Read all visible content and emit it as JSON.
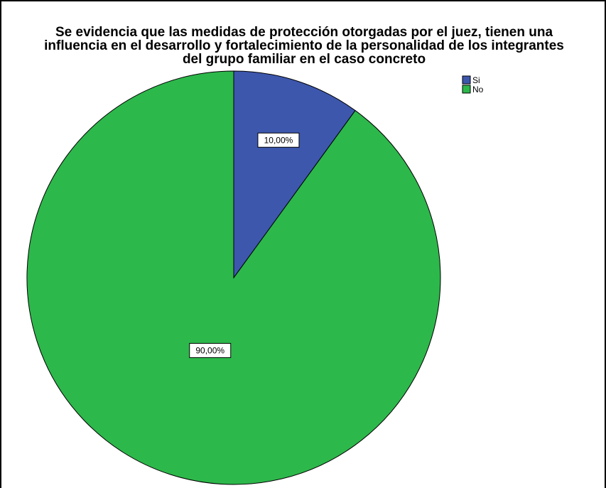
{
  "chart_data": {
    "type": "pie",
    "title_lines": [
      "Se evidencia que las medidas de protección otorgadas por el juez, tienen una",
      "influencia en el desarrollo y fortalecimiento de la personalidad de los integrantes",
      "del grupo familiar en el caso concreto"
    ],
    "slices": [
      {
        "label": "Si",
        "value": 10.0,
        "display": "10,00%",
        "color": "#3d57ad"
      },
      {
        "label": "No",
        "value": 90.0,
        "display": "90,00%",
        "color": "#2db84b"
      }
    ],
    "legend_placement": "top-right",
    "start_angle_deg": 0,
    "direction": "clockwise"
  }
}
